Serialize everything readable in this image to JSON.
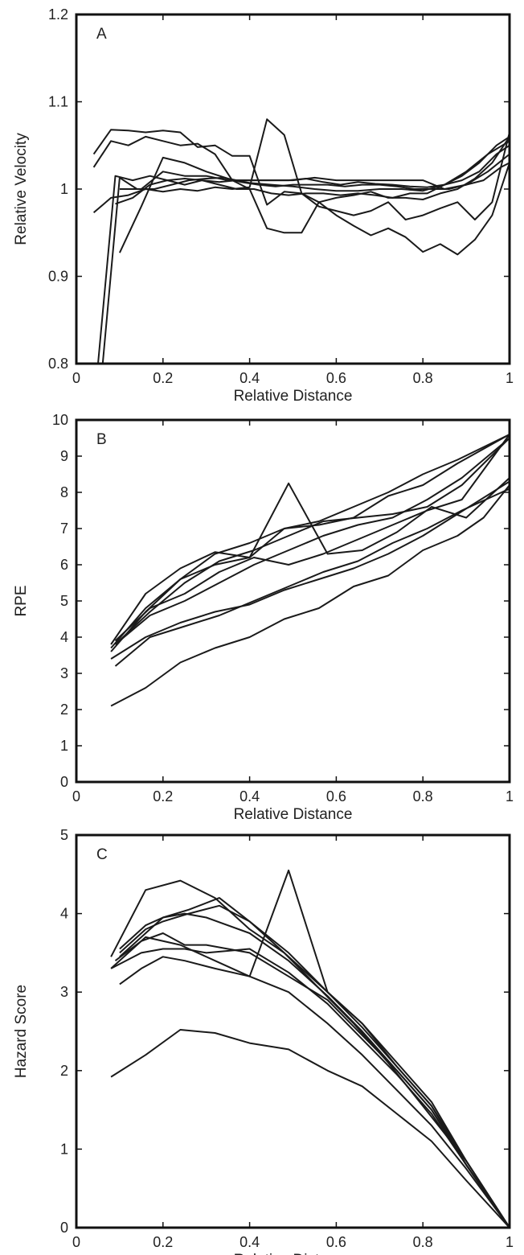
{
  "chart_data": [
    {
      "type": "line",
      "panel_label": "A",
      "xlabel": "Relative Distance",
      "ylabel": "Relative Velocity",
      "xlim": [
        0,
        1
      ],
      "ylim": [
        0.8,
        1.2
      ],
      "xticks": [
        "0",
        "0.2",
        "0.4",
        "0.6",
        "0.8",
        "1"
      ],
      "yticks": [
        "0.8",
        "0.9",
        "1",
        "1.1",
        "1.2"
      ],
      "xtick_values": [
        0,
        0.2,
        0.4,
        0.6,
        0.8,
        1
      ],
      "ytick_values": [
        0.8,
        0.9,
        1.0,
        1.1,
        1.2
      ],
      "grid": false,
      "series": [
        {
          "x": [
            0.04,
            0.08,
            0.12,
            0.16,
            0.2,
            0.24,
            0.28,
            0.32,
            0.36,
            0.4,
            0.44,
            0.48,
            0.52,
            0.56,
            0.6,
            0.64,
            0.68,
            0.72,
            0.76,
            0.8,
            0.84,
            0.88,
            0.92,
            0.96,
            1.0
          ],
          "y": [
            1.04,
            1.068,
            1.067,
            1.065,
            1.067,
            1.065,
            1.048,
            1.05,
            1.038,
            1.038,
            0.982,
            0.997,
            0.995,
            0.98,
            0.975,
            0.97,
            0.975,
            0.985,
            0.965,
            0.97,
            0.978,
            0.985,
            0.965,
            0.985,
            1.065
          ]
        },
        {
          "x": [
            0.04,
            0.08,
            0.12,
            0.16,
            0.2,
            0.24,
            0.28,
            0.32,
            0.36,
            0.4,
            0.44,
            0.48,
            0.52,
            0.56,
            0.6,
            0.64,
            0.68,
            0.72,
            0.76,
            0.8,
            0.84,
            0.88,
            0.92,
            0.96,
            1.0
          ],
          "y": [
            1.025,
            1.055,
            1.05,
            1.06,
            1.055,
            1.05,
            1.052,
            1.04,
            1.01,
            1.0,
            0.955,
            0.95,
            0.95,
            0.985,
            0.97,
            0.958,
            0.947,
            0.955,
            0.945,
            0.928,
            0.937,
            0.925,
            0.942,
            0.97,
            1.03
          ]
        },
        {
          "x": [
            0.04,
            0.08,
            0.12,
            0.16,
            0.2,
            0.24,
            0.28,
            0.32,
            0.36,
            0.4,
            0.44,
            0.48,
            0.52,
            0.56,
            0.6,
            0.64,
            0.68,
            0.72,
            0.76,
            0.8,
            0.84,
            0.88,
            0.92,
            0.96,
            1.0
          ],
          "y": [
            0.973,
            0.99,
            0.993,
            1.0,
            0.997,
            1.0,
            0.998,
            1.002,
            1.0,
            1.002,
            1.08,
            1.062,
            0.995,
            0.985,
            0.99,
            0.993,
            0.997,
            0.99,
            0.99,
            0.988,
            0.995,
            1.0,
            1.012,
            1.03,
            1.06
          ]
        },
        {
          "x": [
            0.05,
            0.09,
            0.13,
            0.17,
            0.21,
            0.25,
            0.29,
            0.33,
            0.37,
            0.41,
            0.45,
            0.49,
            0.53,
            0.57,
            0.61,
            0.65,
            0.69,
            0.73,
            0.77,
            0.81,
            0.85,
            0.89,
            0.93,
            0.97,
            1.0
          ],
          "y": [
            0.8,
            1.015,
            1.01,
            1.015,
            1.01,
            1.012,
            1.01,
            1.008,
            1.01,
            1.01,
            1.01,
            1.01,
            1.012,
            1.008,
            1.005,
            1.008,
            1.006,
            1.005,
            1.003,
            1.002,
            1.005,
            1.01,
            1.02,
            1.04,
            1.05
          ]
        },
        {
          "x": [
            0.06,
            0.1,
            0.14,
            0.18,
            0.22,
            0.26,
            0.3,
            0.34,
            0.38,
            0.42,
            0.46,
            0.5,
            0.54,
            0.58,
            0.62,
            0.66,
            0.7,
            0.74,
            0.78,
            0.82,
            0.86,
            0.9,
            0.94,
            0.98,
            1.0
          ],
          "y": [
            0.795,
            1.013,
            1.0,
            1.0,
            1.005,
            1.01,
            1.012,
            1.013,
            1.008,
            1.005,
            1.003,
            1.005,
            1.005,
            1.005,
            1.003,
            1.005,
            1.005,
            1.003,
            1.0,
            1.0,
            1.0,
            1.005,
            1.01,
            1.025,
            1.03
          ]
        },
        {
          "x": [
            0.09,
            0.13,
            0.17,
            0.21,
            0.25,
            0.29,
            0.33,
            0.37,
            0.41,
            0.45,
            0.49,
            0.53,
            0.57,
            0.61,
            0.65,
            0.69,
            0.73,
            0.77,
            0.81,
            0.85,
            0.89,
            0.93,
            0.97,
            1.0
          ],
          "y": [
            0.983,
            0.99,
            1.005,
            1.01,
            1.005,
            1.01,
            1.005,
            1.0,
            1.0,
            0.995,
            0.993,
            0.995,
            0.995,
            0.993,
            0.995,
            0.993,
            0.99,
            0.995,
            0.995,
            1.005,
            1.015,
            1.03,
            1.05,
            1.06
          ]
        },
        {
          "x": [
            0.1,
            0.15,
            0.2,
            0.25,
            0.3,
            0.35,
            0.4,
            0.45,
            0.5,
            0.55,
            0.6,
            0.65,
            0.7,
            0.75,
            0.8,
            0.85,
            0.9,
            0.95,
            1.0
          ],
          "y": [
            0.927,
            0.98,
            1.036,
            1.03,
            1.02,
            1.012,
            1.007,
            1.005,
            1.003,
            1.0,
            0.998,
            0.998,
            1.0,
            1.0,
            0.998,
            1.005,
            1.02,
            1.04,
            1.055
          ]
        },
        {
          "x": [
            0.1,
            0.15,
            0.2,
            0.25,
            0.3,
            0.35,
            0.4,
            0.45,
            0.5,
            0.55,
            0.6,
            0.65,
            0.7,
            0.75,
            0.8,
            0.85,
            0.9,
            0.95,
            1.0
          ],
          "y": [
            1.0,
            1.0,
            1.02,
            1.015,
            1.015,
            1.01,
            1.01,
            1.01,
            1.01,
            1.013,
            1.01,
            1.01,
            1.01,
            1.01,
            1.01,
            1.0,
            1.005,
            1.02,
            1.04
          ]
        }
      ]
    },
    {
      "type": "line",
      "panel_label": "B",
      "xlabel": "Relative Distance",
      "ylabel": "RPE",
      "xlim": [
        0,
        1
      ],
      "ylim": [
        0,
        10
      ],
      "xticks": [
        "0",
        "0.2",
        "0.4",
        "0.6",
        "0.8",
        "1"
      ],
      "yticks": [
        "0",
        "1",
        "2",
        "3",
        "4",
        "5",
        "6",
        "7",
        "8",
        "9",
        "10"
      ],
      "xtick_values": [
        0,
        0.2,
        0.4,
        0.6,
        0.8,
        1
      ],
      "ytick_values": [
        0,
        1,
        2,
        3,
        4,
        5,
        6,
        7,
        8,
        9,
        10
      ],
      "grid": false,
      "series": [
        {
          "x": [
            0.08,
            0.16,
            0.24,
            0.32,
            0.4,
            0.48,
            0.56,
            0.64,
            0.72,
            0.8,
            0.88,
            1.0
          ],
          "y": [
            3.8,
            5.2,
            5.9,
            6.35,
            6.2,
            7.0,
            7.2,
            7.6,
            8.0,
            8.5,
            8.9,
            9.6
          ]
        },
        {
          "x": [
            0.08,
            0.16,
            0.24,
            0.32,
            0.4,
            0.48,
            0.56,
            0.64,
            0.72,
            0.8,
            0.88,
            1.0
          ],
          "y": [
            3.7,
            4.8,
            5.6,
            6.3,
            6.6,
            7.0,
            7.1,
            7.3,
            7.9,
            8.2,
            8.8,
            9.6
          ]
        },
        {
          "x": [
            0.08,
            0.16,
            0.24,
            0.32,
            0.4,
            0.49,
            0.58,
            0.66,
            0.74,
            0.82,
            0.9,
            1.0
          ],
          "y": [
            3.6,
            4.7,
            5.6,
            6.0,
            6.2,
            8.25,
            6.3,
            6.4,
            6.9,
            7.6,
            7.3,
            8.4
          ]
        },
        {
          "x": [
            0.09,
            0.17,
            0.25,
            0.33,
            0.41,
            0.49,
            0.57,
            0.65,
            0.73,
            0.81,
            0.89,
            1.0
          ],
          "y": [
            3.8,
            4.7,
            5.5,
            6.1,
            6.4,
            6.8,
            7.2,
            7.3,
            7.4,
            7.6,
            8.2,
            9.5
          ]
        },
        {
          "x": [
            0.09,
            0.17,
            0.25,
            0.33,
            0.41,
            0.49,
            0.57,
            0.65,
            0.73,
            0.81,
            0.89,
            1.0
          ],
          "y": [
            3.9,
            4.8,
            5.2,
            5.8,
            6.2,
            6.0,
            6.3,
            6.7,
            7.1,
            7.5,
            7.8,
            9.6
          ]
        },
        {
          "x": [
            0.09,
            0.17,
            0.25,
            0.33,
            0.41,
            0.49,
            0.57,
            0.65,
            0.73,
            0.81,
            0.89,
            1.0
          ],
          "y": [
            3.8,
            4.6,
            5.0,
            5.5,
            6.0,
            6.4,
            6.8,
            7.1,
            7.3,
            7.8,
            8.4,
            9.5
          ]
        },
        {
          "x": [
            0.08,
            0.16,
            0.24,
            0.32,
            0.4,
            0.48,
            0.56,
            0.64,
            0.72,
            0.8,
            0.88,
            1.0
          ],
          "y": [
            3.4,
            4.0,
            4.4,
            4.7,
            4.9,
            5.3,
            5.6,
            5.9,
            6.3,
            6.8,
            7.4,
            8.3
          ]
        },
        {
          "x": [
            0.09,
            0.17,
            0.25,
            0.33,
            0.41,
            0.49,
            0.57,
            0.65,
            0.73,
            0.81,
            0.89,
            1.0
          ],
          "y": [
            3.2,
            4.0,
            4.3,
            4.6,
            5.0,
            5.4,
            5.8,
            6.1,
            6.6,
            7.0,
            7.5,
            8.1
          ]
        },
        {
          "x": [
            0.08,
            0.16,
            0.24,
            0.32,
            0.4,
            0.48,
            0.56,
            0.64,
            0.72,
            0.8,
            0.88,
            0.94,
            1.0
          ],
          "y": [
            2.1,
            2.6,
            3.3,
            3.7,
            4.0,
            4.5,
            4.8,
            5.4,
            5.7,
            6.4,
            6.8,
            7.3,
            8.2
          ]
        }
      ]
    },
    {
      "type": "line",
      "panel_label": "C",
      "xlabel": "Relative Distance",
      "ylabel": "Hazard Score",
      "xlim": [
        0,
        1
      ],
      "ylim": [
        0,
        5
      ],
      "xticks": [
        "0",
        "0.2",
        "0.4",
        "0.6",
        "0.8",
        "1"
      ],
      "yticks": [
        "0",
        "1",
        "2",
        "3",
        "4",
        "5"
      ],
      "xtick_values": [
        0,
        0.2,
        0.4,
        0.6,
        0.8,
        1
      ],
      "ytick_values": [
        0,
        1,
        2,
        3,
        4,
        5
      ],
      "grid": false,
      "series": [
        {
          "x": [
            0.08,
            0.16,
            0.24,
            0.32,
            0.4,
            0.48,
            0.56,
            0.64,
            0.72,
            0.8,
            0.9,
            1.0
          ],
          "y": [
            3.45,
            4.3,
            4.42,
            4.2,
            3.8,
            3.5,
            3.05,
            2.6,
            2.1,
            1.55,
            0.85,
            0.0
          ]
        },
        {
          "x": [
            0.1,
            0.16,
            0.2,
            0.26,
            0.33,
            0.4,
            0.49,
            0.58,
            0.66,
            0.74,
            0.82,
            0.9,
            1.0
          ],
          "y": [
            3.55,
            3.85,
            3.95,
            4.05,
            4.2,
            3.9,
            3.5,
            3.0,
            2.6,
            2.1,
            1.6,
            0.85,
            0.0
          ]
        },
        {
          "x": [
            0.1,
            0.16,
            0.2,
            0.26,
            0.33,
            0.4,
            0.49,
            0.58,
            0.66,
            0.74,
            0.82,
            0.9,
            1.0
          ],
          "y": [
            3.5,
            3.8,
            3.9,
            4.0,
            4.1,
            3.9,
            3.45,
            3.0,
            2.55,
            2.05,
            1.55,
            0.85,
            0.0
          ]
        },
        {
          "x": [
            0.1,
            0.16,
            0.2,
            0.25,
            0.3,
            0.4,
            0.49,
            0.58,
            0.66,
            0.74,
            0.82,
            0.9,
            1.0
          ],
          "y": [
            3.45,
            3.75,
            3.95,
            4.0,
            3.95,
            3.75,
            3.4,
            2.95,
            2.5,
            2.0,
            1.5,
            0.8,
            0.0
          ]
        },
        {
          "x": [
            0.09,
            0.15,
            0.2,
            0.25,
            0.3,
            0.4,
            0.49,
            0.58,
            0.66,
            0.74,
            0.82,
            0.9,
            1.0
          ],
          "y": [
            3.4,
            3.65,
            3.75,
            3.6,
            3.6,
            3.5,
            3.2,
            2.9,
            2.45,
            2.0,
            1.5,
            0.8,
            0.0
          ]
        },
        {
          "x": [
            0.08,
            0.15,
            0.2,
            0.25,
            0.3,
            0.4,
            0.49,
            0.58,
            0.66,
            0.74,
            0.82,
            0.9,
            1.0
          ],
          "y": [
            3.3,
            3.5,
            3.55,
            3.55,
            3.5,
            3.55,
            3.25,
            2.85,
            2.4,
            1.95,
            1.45,
            0.8,
            0.0
          ]
        },
        {
          "x": [
            0.08,
            0.16,
            0.24,
            0.32,
            0.4,
            0.49,
            0.58,
            0.66,
            0.74,
            0.82,
            0.9,
            1.0
          ],
          "y": [
            3.3,
            3.7,
            3.6,
            3.4,
            3.2,
            4.55,
            3.0,
            2.6,
            2.05,
            1.55,
            0.8,
            0.0
          ]
        },
        {
          "x": [
            0.1,
            0.15,
            0.2,
            0.25,
            0.32,
            0.4,
            0.49,
            0.58,
            0.66,
            0.74,
            0.82,
            0.9,
            1.0
          ],
          "y": [
            3.1,
            3.3,
            3.45,
            3.4,
            3.3,
            3.2,
            3.0,
            2.6,
            2.2,
            1.75,
            1.3,
            0.75,
            0.0
          ]
        },
        {
          "x": [
            0.08,
            0.16,
            0.24,
            0.32,
            0.4,
            0.49,
            0.58,
            0.66,
            0.74,
            0.82,
            0.9,
            1.0
          ],
          "y": [
            1.92,
            2.2,
            2.52,
            2.48,
            2.35,
            2.27,
            2.0,
            1.8,
            1.45,
            1.1,
            0.6,
            0.0
          ]
        }
      ]
    }
  ]
}
